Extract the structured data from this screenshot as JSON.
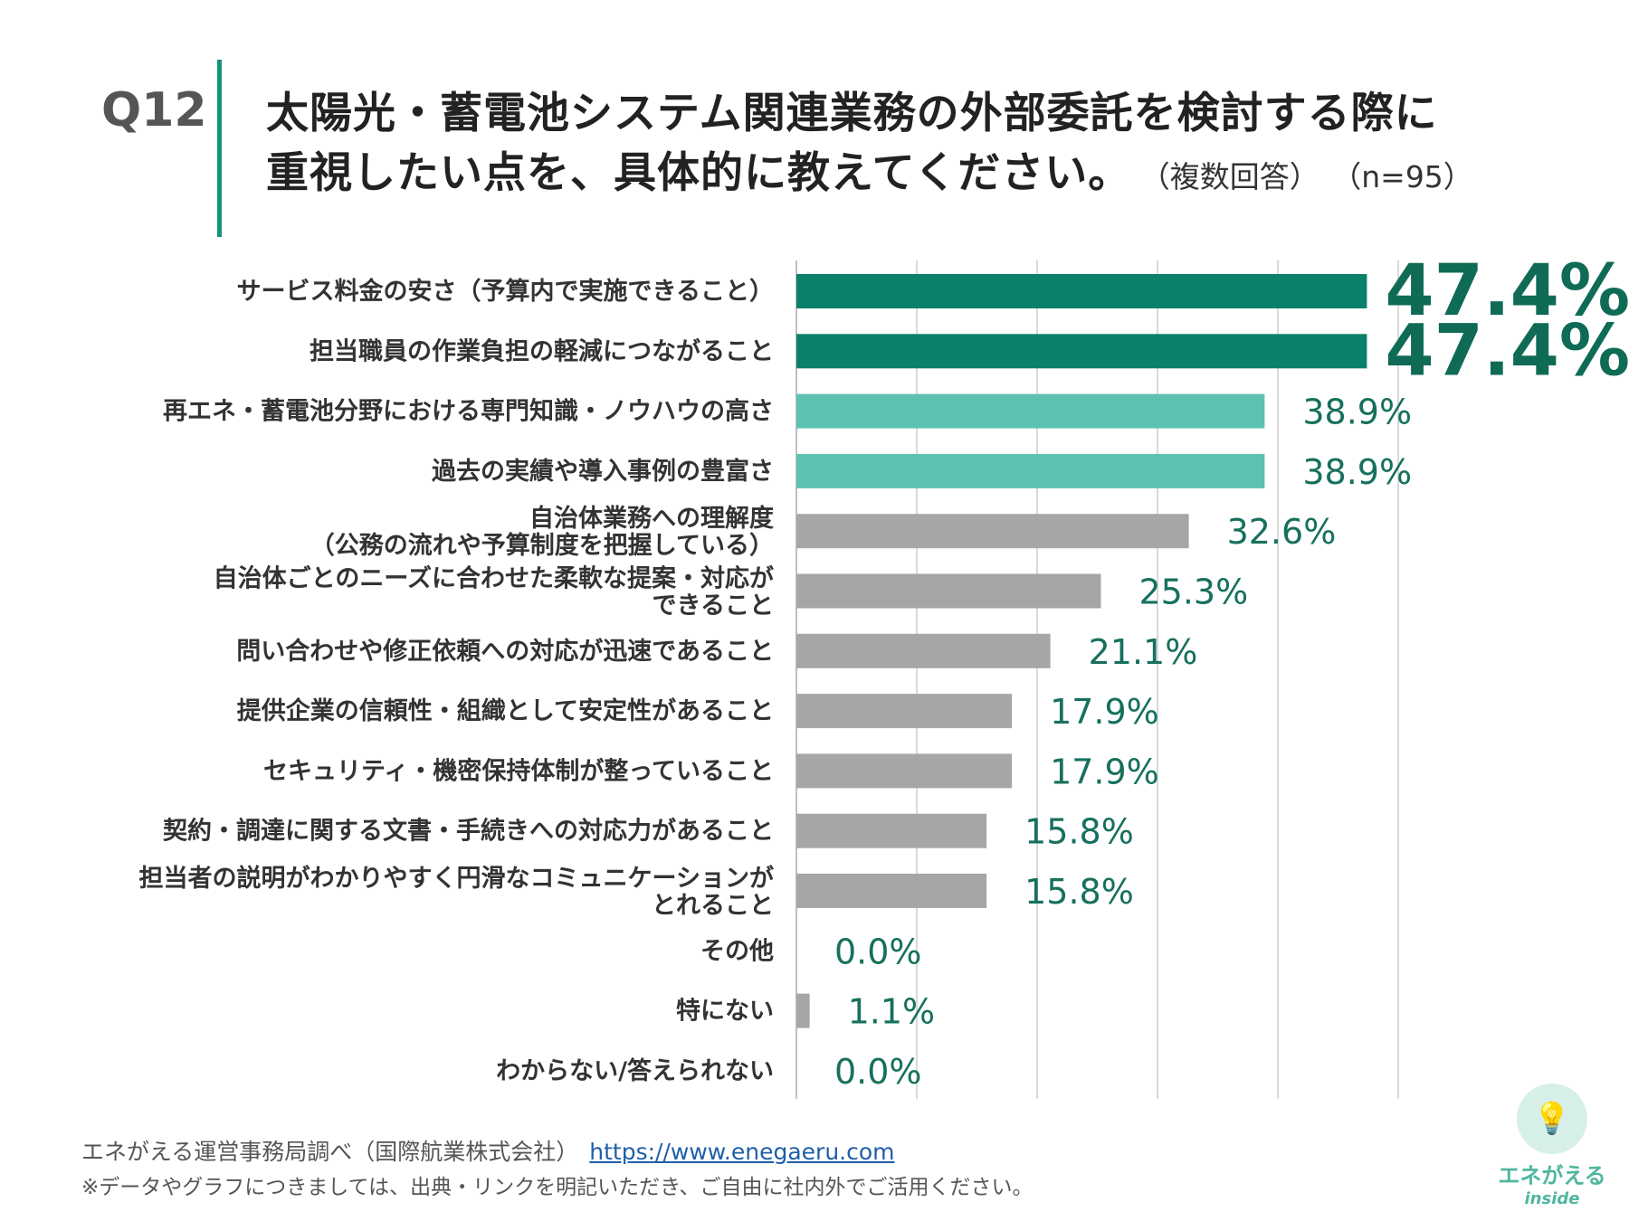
{
  "header": {
    "question_no": "Q12",
    "title_line1": "太陽光・蓄電池システム関連業務の外部委託を検討する際に",
    "title_line2": "重視したい点を、具体的に教えてください。",
    "title_note": "（複数回答）",
    "sample_size": "（n=95）"
  },
  "colors": {
    "top": "#0b8068",
    "second": "#5dc1b2",
    "other": "#a6a6a6",
    "value_text": "#16705d",
    "accent_line": "#17917c"
  },
  "chart_data": {
    "type": "bar",
    "orientation": "horizontal",
    "unit": "%",
    "xlim": [
      0,
      50
    ],
    "grid": true,
    "categories": [
      [
        "サービス料金の安さ（予算内で実施できること）"
      ],
      [
        "担当職員の作業負担の軽減につながること"
      ],
      [
        "再エネ・蓄電池分野における専門知識・ノウハウの高さ"
      ],
      [
        "過去の実績や導入事例の豊富さ"
      ],
      [
        "自治体業務への理解度",
        "（公務の流れや予算制度を把握している）"
      ],
      [
        "自治体ごとのニーズに合わせた柔軟な提案・対応が",
        "できること"
      ],
      [
        "問い合わせや修正依頼への対応が迅速であること"
      ],
      [
        "提供企業の信頼性・組織として安定性があること"
      ],
      [
        "セキュリティ・機密保持体制が整っていること"
      ],
      [
        "契約・調達に関する文書・手続きへの対応力があること"
      ],
      [
        "担当者の説明がわかりやすく円滑なコミュニケーションが",
        "とれること"
      ],
      [
        "その他"
      ],
      [
        "特にない"
      ],
      [
        "わからない/答えられない"
      ]
    ],
    "values": [
      47.4,
      47.4,
      38.9,
      38.9,
      32.6,
      25.3,
      21.1,
      17.9,
      17.9,
      15.8,
      15.8,
      0.0,
      1.1,
      0.0
    ],
    "value_labels": [
      "47.4%",
      "47.4%",
      "38.9%",
      "38.9%",
      "32.6%",
      "25.3%",
      "21.1%",
      "17.9%",
      "17.9%",
      "15.8%",
      "15.8%",
      "0.0%",
      "1.1%",
      "0.0%"
    ],
    "color_groups": [
      "top",
      "top",
      "second",
      "second",
      "other",
      "other",
      "other",
      "other",
      "other",
      "other",
      "other",
      "other",
      "other",
      "other"
    ]
  },
  "footer": {
    "source": "エネがえる運営事務局調べ（国際航業株式会社）",
    "link": "https://www.enegaeru.com",
    "note": "※データやグラフにつきましては、出典・リンクを明記いただき、ご自由に社内外でご活用ください。"
  },
  "logo": {
    "name": "エネがえる",
    "sub": "inside",
    "icon": "lightbulb-icon"
  }
}
